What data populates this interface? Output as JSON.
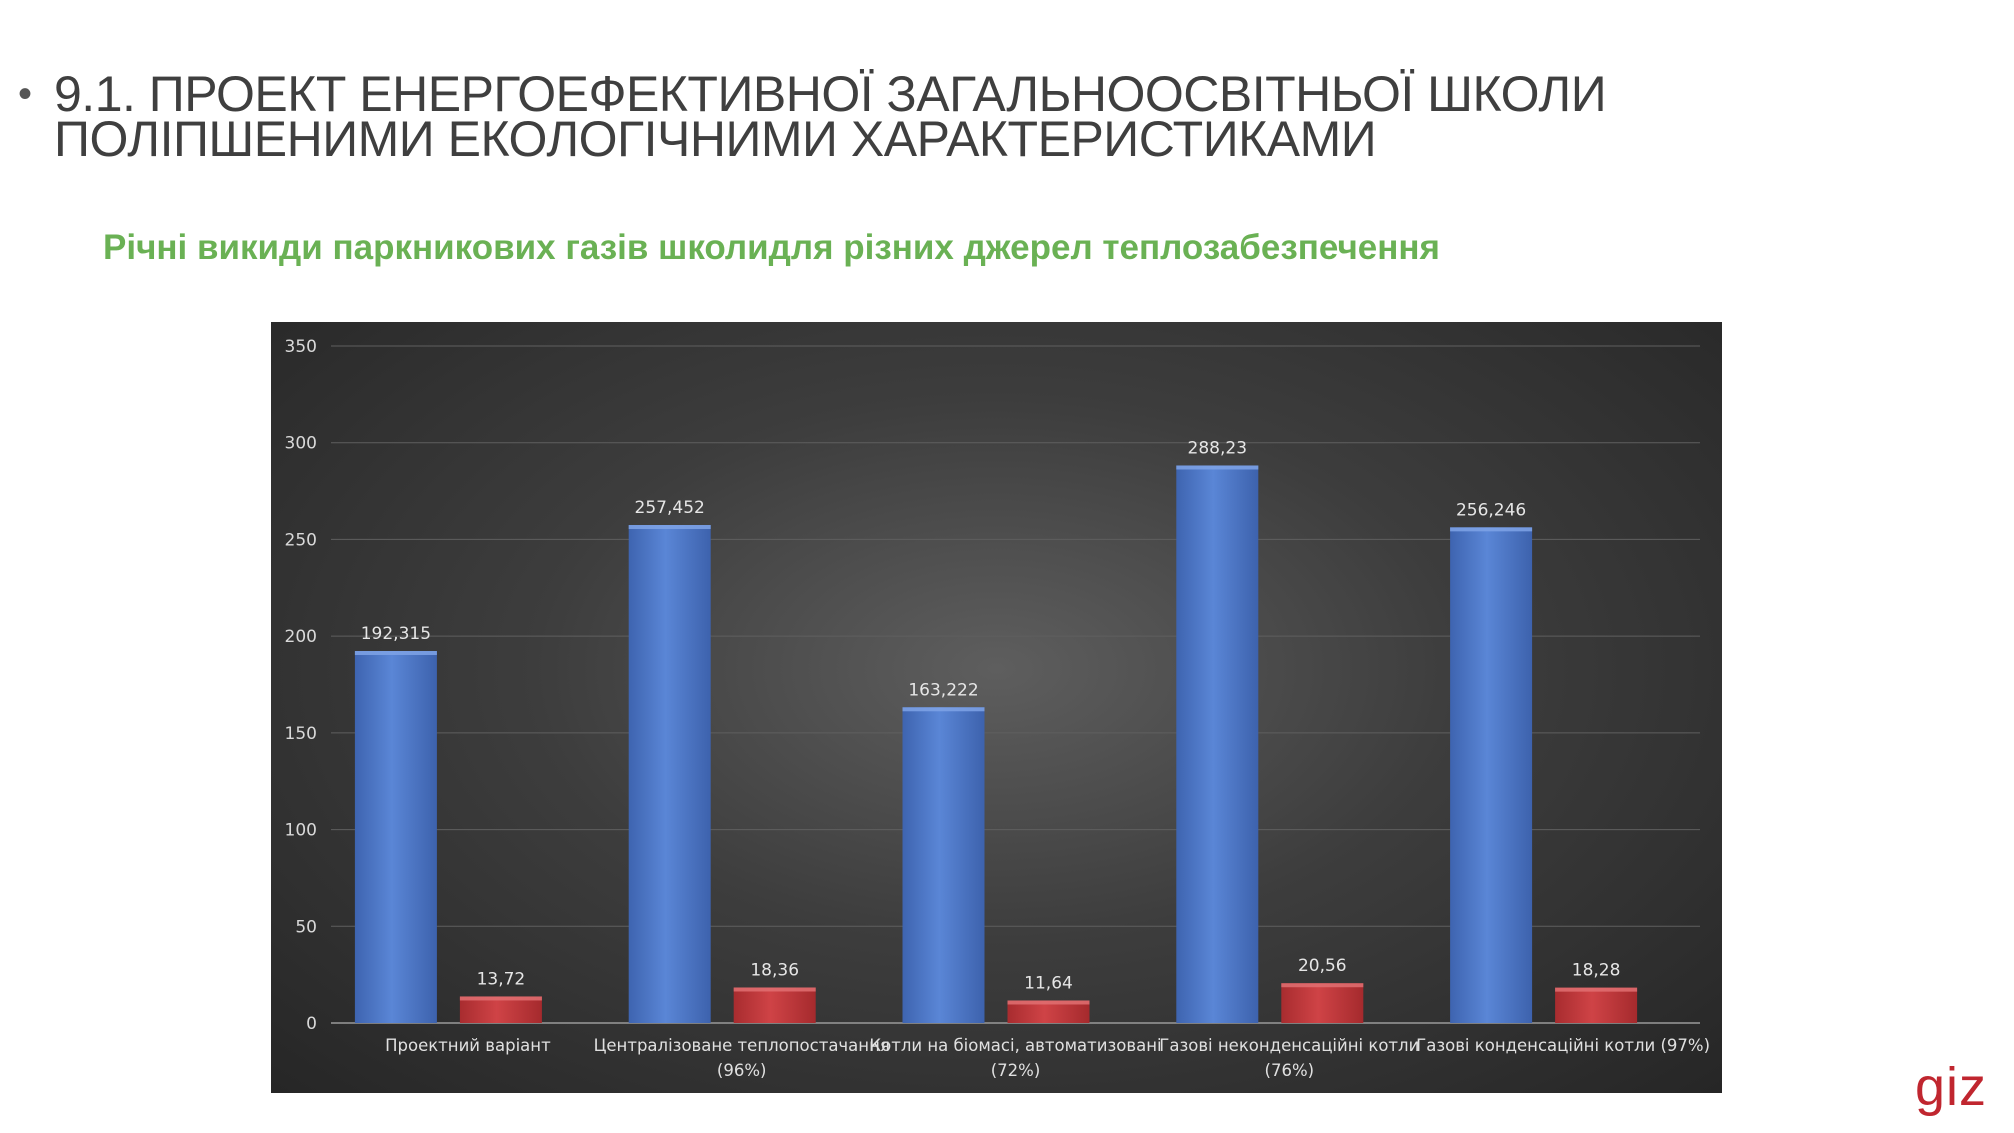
{
  "slide": {
    "bullet": "•",
    "title_line1": "9.1. ПРОЕКТ ЕНЕРГОЕФЕКТИВНОЇ ЗАГАЛЬНООСВІТНЬОЇ ШКОЛИ",
    "title_line2": "ПОЛІПШЕНИМИ ЕКОЛОГІЧНИМИ ХАРАКТЕРИСТИКАМИ",
    "subtitle": "Річні викиди паркникових газів школидля різних джерел  теплозабезпечення",
    "logo": "giz"
  },
  "colors": {
    "title": "#3f3f3f",
    "subtitle": "#6ab154",
    "series_blue": "#4f79c9",
    "series_red": "#c0373a",
    "logo": "#c0262f"
  },
  "chart_data": {
    "type": "bar",
    "title": "",
    "xlabel": "",
    "ylabel": "",
    "ylim": [
      0,
      350
    ],
    "yticks": [
      "0",
      "50",
      "100",
      "150",
      "200",
      "250",
      "300",
      "350"
    ],
    "grid": true,
    "legend": "none",
    "categories": [
      [
        "Проектний варіант"
      ],
      [
        "Централізоване теплопостачання",
        "(96%)"
      ],
      [
        "Котли на біомасі, автоматизовані",
        "(72%)"
      ],
      [
        "Газові неконденсаційні котли",
        "(76%)"
      ],
      [
        "Газові конденсаційні котли (97%)"
      ]
    ],
    "series": [
      {
        "values": [
          192.315,
          257.452,
          163.222,
          288.23,
          256.246
        ],
        "labels": [
          "192,315",
          "257,452",
          "163,222",
          "288,23",
          "256,246"
        ],
        "color": "#4f79c9"
      },
      {
        "values": [
          13.72,
          18.36,
          11.64,
          20.56,
          18.28
        ],
        "labels": [
          "13,72",
          "18,36",
          "11,64",
          "20,56",
          "18,28"
        ],
        "color": "#c0373a"
      }
    ]
  }
}
